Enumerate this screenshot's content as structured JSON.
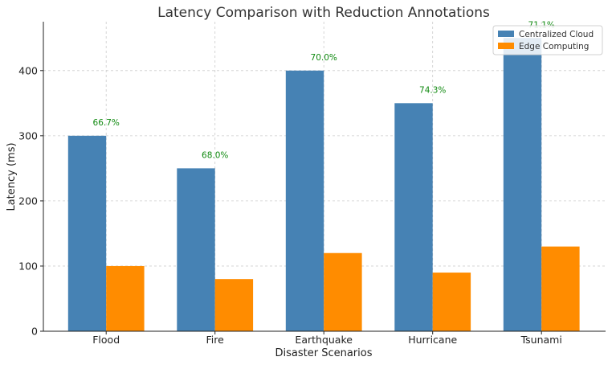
{
  "chart_data": {
    "type": "bar",
    "title": "Latency Comparison with Reduction Annotations",
    "xlabel": "Disaster Scenarios",
    "ylabel": "Latency (ms)",
    "categories": [
      "Flood",
      "Fire",
      "Earthquake",
      "Hurricane",
      "Tsunami"
    ],
    "series": [
      {
        "name": "Centralized Cloud",
        "color": "#4682b4",
        "values": [
          300,
          250,
          400,
          350,
          450
        ]
      },
      {
        "name": "Edge Computing",
        "color": "#ff8c00",
        "values": [
          100,
          80,
          120,
          90,
          130
        ]
      }
    ],
    "annotations": [
      "66.7%",
      "68.0%",
      "70.0%",
      "74.3%",
      "71.1%"
    ],
    "annotation_color": "#118a11",
    "ylim": [
      0,
      475
    ],
    "yticks": [
      0,
      100,
      200,
      300,
      400
    ],
    "grid": true,
    "legend_position": "top-right"
  }
}
